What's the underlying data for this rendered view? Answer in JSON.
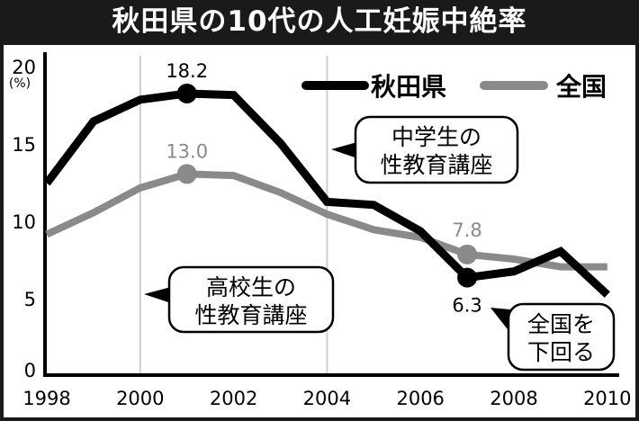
{
  "title": "秋田県の10代の人工妊娠中絶率",
  "chart_data": {
    "type": "line",
    "title": "秋田県の10代の人工妊娠中絶率",
    "ylabel": "(%)",
    "xlabel": "",
    "x": [
      1998,
      1999,
      2000,
      2001,
      2002,
      2003,
      2004,
      2005,
      2006,
      2007,
      2008,
      2009,
      2010
    ],
    "xticks": [
      "1998",
      "2000",
      "2002",
      "2004",
      "2006",
      "2008",
      "2010"
    ],
    "yticks": [
      "0",
      "5",
      "10",
      "15",
      "20"
    ],
    "ylim": [
      0,
      20
    ],
    "xlim": [
      1998,
      2010
    ],
    "grid": "vertical at 2000 and 2004",
    "legend": "top-right",
    "series": [
      {
        "name": "秋田県",
        "color": "#000000",
        "values": [
          12.4,
          16.4,
          17.8,
          18.2,
          18.1,
          15.0,
          11.2,
          11.0,
          9.3,
          6.3,
          6.7,
          8.0,
          5.2
        ]
      },
      {
        "name": "全国",
        "color": "#8a8a8a",
        "values": [
          9.1,
          10.5,
          12.1,
          13.0,
          12.9,
          11.8,
          10.4,
          9.4,
          8.9,
          7.8,
          7.5,
          7.0,
          7.0
        ]
      }
    ],
    "point_labels": [
      {
        "series": 0,
        "x": 2001,
        "text": "18.2"
      },
      {
        "series": 1,
        "x": 2001,
        "text": "13.0"
      },
      {
        "series": 1,
        "x": 2007,
        "text": "7.8"
      },
      {
        "series": 0,
        "x": 2007,
        "text": "6.3"
      }
    ],
    "annotations": [
      {
        "lines": [
          "中学生の",
          "性教育講座"
        ],
        "x": 2004
      },
      {
        "lines": [
          "高校生の",
          "性教育講座"
        ],
        "x": 2000
      },
      {
        "lines": [
          "全国を",
          "下回る"
        ],
        "x": 2007
      }
    ]
  }
}
